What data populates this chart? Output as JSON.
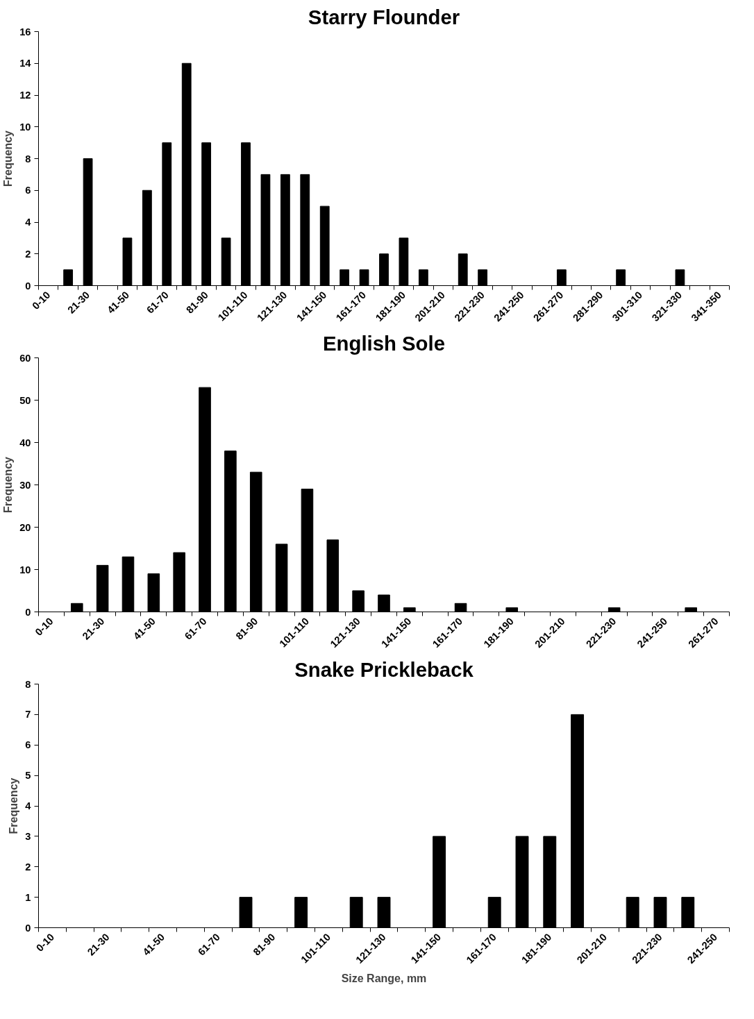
{
  "chart_data": [
    {
      "type": "bar",
      "title": "Starry Flounder",
      "ylabel": "Frequency",
      "categories": [
        "0-10",
        null,
        "21-30",
        null,
        "41-50",
        null,
        "61-70",
        null,
        "81-90",
        null,
        "101-110",
        null,
        "121-130",
        null,
        "141-150",
        null,
        "161-170",
        null,
        "181-190",
        null,
        "201-210",
        null,
        "221-230",
        null,
        "241-250",
        null,
        "261-270",
        null,
        "281-290",
        null,
        "301-310",
        null,
        "321-330",
        null,
        "341-350"
      ],
      "values": [
        0,
        1,
        8,
        0,
        3,
        6,
        9,
        14,
        9,
        3,
        9,
        7,
        7,
        7,
        5,
        1,
        1,
        2,
        3,
        1,
        0,
        2,
        1,
        0,
        0,
        0,
        1,
        0,
        0,
        1,
        0,
        0,
        1,
        0,
        0
      ],
      "color": "#000000",
      "ylim": [
        0,
        16
      ],
      "yticks": [
        0,
        2,
        4,
        6,
        8,
        10,
        12,
        14,
        16
      ],
      "grid": false
    },
    {
      "type": "bar",
      "title": "English Sole",
      "ylabel": "Frequency",
      "categories": [
        "0-10",
        null,
        "21-30",
        null,
        "41-50",
        null,
        "61-70",
        null,
        "81-90",
        null,
        "101-110",
        null,
        "121-130",
        null,
        "141-150",
        null,
        "161-170",
        null,
        "181-190",
        null,
        "201-210",
        null,
        "221-230",
        null,
        "241-250",
        null,
        "261-270"
      ],
      "values": [
        0,
        2,
        11,
        13,
        9,
        14,
        53,
        38,
        33,
        16,
        29,
        17,
        5,
        4,
        1,
        0,
        2,
        0,
        1,
        0,
        0,
        0,
        1,
        0,
        0,
        1,
        0
      ],
      "color": "#000000",
      "ylim": [
        0,
        60
      ],
      "yticks": [
        0,
        10,
        20,
        30,
        40,
        50,
        60
      ],
      "grid": false
    },
    {
      "type": "bar",
      "title": "Snake Prickleback",
      "ylabel": "Frequency",
      "xlabel": "Size Range, mm",
      "categories": [
        "0-10",
        null,
        "21-30",
        null,
        "41-50",
        null,
        "61-70",
        null,
        "81-90",
        null,
        "101-110",
        null,
        "121-130",
        null,
        "141-150",
        null,
        "161-170",
        null,
        "181-190",
        null,
        "201-210",
        null,
        "221-230",
        null,
        "241-250"
      ],
      "values": [
        0,
        0,
        0,
        0,
        0,
        0,
        0,
        1,
        0,
        1,
        0,
        1,
        1,
        0,
        3,
        0,
        1,
        3,
        3,
        7,
        0,
        1,
        1,
        1,
        0
      ],
      "color": "#000000",
      "ylim": [
        0,
        8
      ],
      "yticks": [
        0,
        1,
        2,
        3,
        4,
        5,
        6,
        7,
        8
      ],
      "grid": false
    }
  ]
}
